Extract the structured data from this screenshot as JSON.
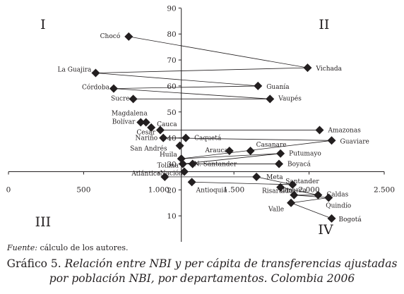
{
  "chart_data": {
    "type": "scatter",
    "x_ticks": [
      "0",
      "500",
      "1.000",
      "1.500",
      "2.000",
      "2.500"
    ],
    "y_ticks": [
      "10",
      "20",
      "30",
      "40",
      "50",
      "60",
      "70",
      "80",
      "90"
    ],
    "xlim": [
      0,
      2500
    ],
    "ylim": [
      0,
      92
    ],
    "axis_cross": {
      "x": 1150,
      "y": 27
    },
    "grid": false,
    "legend": "none",
    "marker_color": "#231f20",
    "quadrants": [
      {
        "label": "I",
        "x": 230,
        "y": 82
      },
      {
        "label": "II",
        "x": 2100,
        "y": 82
      },
      {
        "label": "III",
        "x": 230,
        "y": 6
      },
      {
        "label": "IV",
        "x": 2110,
        "y": 3
      }
    ],
    "points": [
      {
        "name": "Chocó",
        "x": 800,
        "y": 79
      },
      {
        "name": "Vichada",
        "x": 1990,
        "y": 67
      },
      {
        "name": "La Guajira",
        "x": 580,
        "y": 65
      },
      {
        "name": "Guanía",
        "x": 1660,
        "y": 60
      },
      {
        "name": "Córdoba",
        "x": 700,
        "y": 59
      },
      {
        "name": "Sucre",
        "x": 830,
        "y": 55
      },
      {
        "name": "Vaupés",
        "x": 1740,
        "y": 55
      },
      {
        "name": "Magdalena",
        "x": 915,
        "y": 46
      },
      {
        "name": "Bolívar",
        "x": 880,
        "y": 46
      },
      {
        "name": "Cauca",
        "x": 950,
        "y": 44
      },
      {
        "name": "Cesar",
        "x": 1010,
        "y": 43
      },
      {
        "name": "Amazonas",
        "x": 2070,
        "y": 43
      },
      {
        "name": "Nariño",
        "x": 1030,
        "y": 40
      },
      {
        "name": "Caquetá",
        "x": 1180,
        "y": 40
      },
      {
        "name": "Guaviare",
        "x": 2150,
        "y": 39
      },
      {
        "name": "San Andrés",
        "x": 1140,
        "y": 37
      },
      {
        "name": "Arauca",
        "x": 1470,
        "y": 35
      },
      {
        "name": "Casanare",
        "x": 1610,
        "y": 35
      },
      {
        "name": "Putumayo",
        "x": 1810,
        "y": 34
      },
      {
        "name": "Huila",
        "x": 1150,
        "y": 32
      },
      {
        "name": "Tolima",
        "x": 1160,
        "y": 30
      },
      {
        "name": "N. Santander",
        "x": 1225,
        "y": 30
      },
      {
        "name": "Boyacá",
        "x": 1800,
        "y": 30
      },
      {
        "name": "Nación",
        "x": 1170,
        "y": 27
      },
      {
        "name": "Atlántico",
        "x": 1040,
        "y": 25
      },
      {
        "name": "Meta",
        "x": 1650,
        "y": 25
      },
      {
        "name": "Antioquia",
        "x": 1220,
        "y": 23
      },
      {
        "name": "Santander",
        "x": 1890,
        "y": 22
      },
      {
        "name": "C/marca",
        "x": 1810,
        "y": 21
      },
      {
        "name": "Caldas",
        "x": 2060,
        "y": 18
      },
      {
        "name": "Quindío",
        "x": 2130,
        "y": 17
      },
      {
        "name": "Risaralda",
        "x": 1900,
        "y": 18
      },
      {
        "name": "Valle",
        "x": 1880,
        "y": 15
      },
      {
        "name": "Bogotá",
        "x": 2150,
        "y": 9
      }
    ],
    "connections": [
      [
        "Chocó",
        "Vichada"
      ],
      [
        "La Guajira",
        "Vichada"
      ],
      [
        "La Guajira",
        "Guanía"
      ],
      [
        "Córdoba",
        "Guanía"
      ],
      [
        "Córdoba",
        "Vaupés"
      ],
      [
        "Sucre",
        "Vaupés"
      ],
      [
        "Cesar",
        "Amazonas"
      ],
      [
        "Nariño",
        "Caquetá"
      ],
      [
        "Nariño",
        "Guaviare"
      ],
      [
        "Huila",
        "Guaviare"
      ],
      [
        "Huila",
        "Putumayo"
      ],
      [
        "Tolima",
        "Putumayo"
      ],
      [
        "Tolima",
        "Boyacá"
      ],
      [
        "N. Santander",
        "Boyacá"
      ],
      [
        "Atlántico",
        "Meta"
      ],
      [
        "Meta",
        "Santander"
      ],
      [
        "Antioquia",
        "Santander"
      ],
      [
        "C/marca",
        "Caldas"
      ],
      [
        "Risaralda",
        "Caldas"
      ],
      [
        "Risaralda",
        "Quindío"
      ],
      [
        "Valle",
        "Quindío"
      ],
      [
        "Valle",
        "Bogotá"
      ]
    ]
  },
  "source": {
    "label": "Fuente:",
    "text": "cálculo de los autores."
  },
  "caption": {
    "prefix": "Gráfico 5.",
    "line1_rest": "Relación entre NBI y per cápita de transferencias ajustadas",
    "line2": "por población NBI, por departamentos. Colombia 2006"
  }
}
